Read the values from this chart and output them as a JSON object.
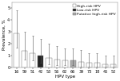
{
  "categories": [
    "16",
    "59",
    "51",
    "42",
    "53",
    "56",
    "62",
    "66",
    "39",
    "73",
    "18",
    "45",
    "52"
  ],
  "values": [
    2.9,
    1.4,
    1.2,
    1.0,
    0.8,
    0.7,
    0.6,
    0.6,
    0.5,
    0.4,
    0.4,
    0.3,
    0.3
  ],
  "ci_low": [
    1.7,
    0.7,
    0.6,
    0.4,
    0.3,
    0.2,
    0.2,
    0.2,
    0.1,
    0.1,
    0.1,
    0.05,
    0.05
  ],
  "ci_high": [
    4.8,
    3.0,
    2.7,
    2.4,
    2.0,
    1.8,
    1.6,
    1.6,
    1.5,
    1.2,
    1.2,
    1.0,
    1.0
  ],
  "bar_colors": [
    "white",
    "white",
    "white",
    "#222222",
    "white",
    "white",
    "white",
    "#aaaaaa",
    "white",
    "white",
    "white",
    "white",
    "white"
  ],
  "bar_edge_color": "#777777",
  "ylabel": "Prevalence, %",
  "xlabel": "HPV type",
  "ylim": [
    0,
    5.5
  ],
  "yticks": [
    0,
    1,
    2,
    3,
    4,
    5
  ],
  "legend_labels": [
    "High-risk HPV",
    "Low-risk HPV",
    "Putative high-risk HPV"
  ],
  "legend_colors": [
    "white",
    "#222222",
    "#aaaaaa"
  ],
  "axis_fontsize": 4.0,
  "tick_fontsize": 3.5,
  "legend_fontsize": 3.2
}
